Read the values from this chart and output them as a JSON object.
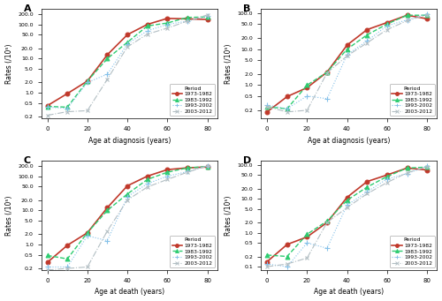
{
  "ages": [
    0,
    10,
    20,
    30,
    40,
    50,
    60,
    70,
    80
  ],
  "panels": {
    "A": {
      "title": "A",
      "xlabel": "Age at diagnosis (years)",
      "ylabel": "Rates (/10⁵)",
      "ylim": [
        0.18,
        280
      ],
      "yticks": [
        0.2,
        0.5,
        1.0,
        2.0,
        5.0,
        10.0,
        20.0,
        50.0,
        100.0,
        200.0
      ],
      "ytick_labels": [
        "0.2",
        "0.5",
        "1.0",
        "2.0",
        "5.0",
        "10.0",
        "20.0",
        "50.0",
        "100.0",
        "200.0"
      ],
      "series": {
        "1973-1982": [
          0.42,
          0.95,
          2.2,
          13.0,
          50.0,
          100.0,
          150.0,
          145.0,
          140.0
        ],
        "1983-1992": [
          0.4,
          0.38,
          2.2,
          10.0,
          30.0,
          90.0,
          110.0,
          160.0,
          165.0
        ],
        "1993-2002": [
          0.38,
          0.35,
          2.0,
          3.5,
          27.0,
          65.0,
          100.0,
          125.0,
          175.0
        ],
        "2003-2012": [
          0.22,
          0.28,
          0.3,
          2.5,
          22.0,
          52.0,
          78.0,
          125.0,
          190.0
        ]
      }
    },
    "B": {
      "title": "B",
      "xlabel": "Age at diagnosis (years)",
      "ylabel": "Rates (/10⁵)",
      "ylim": [
        0.12,
        130
      ],
      "yticks": [
        0.2,
        0.5,
        1.0,
        2.0,
        5.0,
        10.0,
        20.0,
        50.0,
        100.0
      ],
      "ytick_labels": [
        "0.2",
        "0.5",
        "1.0",
        "2.0",
        "5.0",
        "10.0",
        "20.0",
        "50.0",
        "100.0"
      ],
      "series": {
        "1973-1982": [
          0.18,
          0.48,
          0.85,
          2.3,
          13.0,
          35.0,
          55.0,
          88.0,
          70.0
        ],
        "1983-1992": [
          0.25,
          0.22,
          1.0,
          2.3,
          10.0,
          25.0,
          50.0,
          88.0,
          88.0
        ],
        "1993-2002": [
          0.28,
          0.22,
          0.5,
          0.42,
          7.0,
          17.0,
          45.0,
          65.0,
          95.0
        ],
        "2003-2012": [
          0.25,
          0.18,
          0.2,
          2.2,
          6.5,
          15.0,
          35.0,
          62.0,
          90.0
        ]
      }
    },
    "C": {
      "title": "C",
      "xlabel": "Age at death (years)",
      "ylabel": "Rates (/10⁵)",
      "ylim": [
        0.18,
        280
      ],
      "yticks": [
        0.2,
        0.5,
        1.0,
        2.0,
        5.0,
        10.0,
        20.0,
        50.0,
        100.0,
        200.0
      ],
      "ytick_labels": [
        "0.2",
        "0.5",
        "1.0",
        "2.0",
        "5.0",
        "10.0",
        "20.0",
        "50.0",
        "100.0",
        "200.0"
      ],
      "series": {
        "1973-1982": [
          0.3,
          0.95,
          2.2,
          12.0,
          52.0,
          100.0,
          155.0,
          175.0,
          185.0
        ],
        "1983-1992": [
          0.48,
          0.38,
          2.2,
          10.0,
          30.0,
          80.0,
          130.0,
          175.0,
          190.0
        ],
        "1993-2002": [
          0.22,
          0.22,
          1.8,
          1.3,
          25.0,
          60.0,
          100.0,
          135.0,
          200.0
        ],
        "2003-2012": [
          0.18,
          0.2,
          0.22,
          2.5,
          20.0,
          48.0,
          80.0,
          130.0,
          200.0
        ]
      }
    },
    "D": {
      "title": "D",
      "xlabel": "Age at death (years)",
      "ylabel": "Rates (/10⁵)",
      "ylim": [
        0.08,
        130
      ],
      "yticks": [
        0.1,
        0.2,
        0.5,
        1.0,
        2.0,
        5.0,
        10.0,
        20.0,
        50.0,
        100.0
      ],
      "ytick_labels": [
        "0.1",
        "0.2",
        "0.5",
        "1.0",
        "2.0",
        "5.0",
        "10.0",
        "20.0",
        "50.0",
        "100.0"
      ],
      "series": {
        "1973-1982": [
          0.14,
          0.45,
          0.75,
          2.0,
          11.0,
          32.0,
          50.0,
          80.0,
          70.0
        ],
        "1983-1992": [
          0.22,
          0.2,
          0.9,
          2.2,
          9.0,
          22.0,
          45.0,
          80.0,
          85.0
        ],
        "1993-2002": [
          0.12,
          0.1,
          0.5,
          0.35,
          6.5,
          16.0,
          38.0,
          55.0,
          90.0
        ],
        "2003-2012": [
          0.1,
          0.12,
          0.18,
          2.0,
          5.5,
          14.0,
          30.0,
          58.0,
          88.0
        ]
      }
    }
  },
  "colors": {
    "1973-1982": "#c0392b",
    "1983-1992": "#2ecc71",
    "1993-2002": "#85c1e9",
    "2003-2012": "#b2bec3"
  },
  "linestyles": {
    "1973-1982": "-",
    "1983-1992": "--",
    "1993-2002": ":",
    "2003-2012": "-."
  },
  "markers": {
    "1973-1982": "o",
    "1983-1992": "^",
    "1993-2002": "+",
    "2003-2012": "x"
  },
  "markersizes": {
    "1973-1982": 3.5,
    "1983-1992": 3.5,
    "1993-2002": 4.0,
    "2003-2012": 3.5
  },
  "linewidths": {
    "1973-1982": 1.2,
    "1983-1992": 1.0,
    "1993-2002": 0.8,
    "2003-2012": 0.8
  },
  "period_labels": [
    "1973-1982",
    "1983-1992",
    "1993-2002",
    "2003-2012"
  ],
  "background_color": "#ffffff"
}
